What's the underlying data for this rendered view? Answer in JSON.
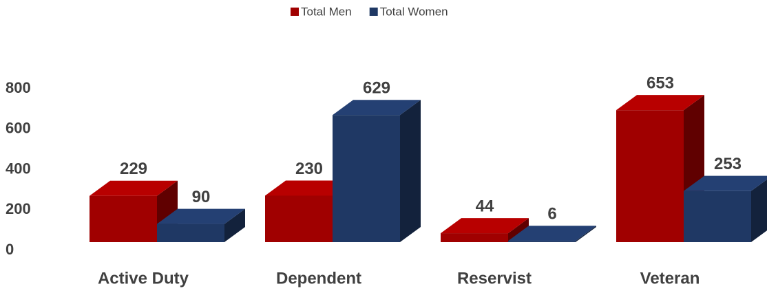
{
  "chart_data": {
    "type": "bar3d",
    "categories": [
      "Active Duty",
      "Dependent",
      "Reservist",
      "Veteran"
    ],
    "series": [
      {
        "name": "Total Men",
        "color": "#a00000",
        "values": [
          229,
          230,
          44,
          653
        ]
      },
      {
        "name": "Total Women",
        "color": "#1f3864",
        "values": [
          90,
          629,
          6,
          253
        ]
      }
    ],
    "ylim": [
      0,
      800
    ],
    "yticks": [
      0,
      200,
      400,
      600,
      800
    ],
    "grid": false,
    "legend": "top"
  }
}
